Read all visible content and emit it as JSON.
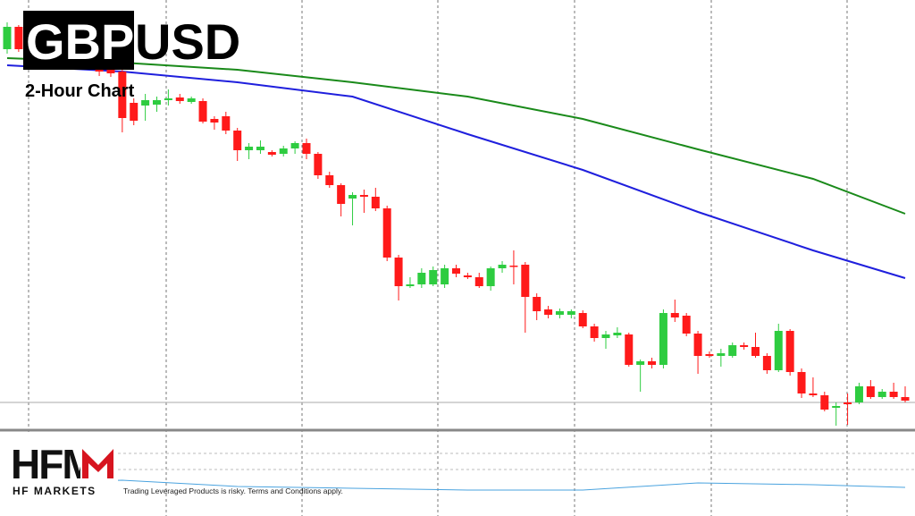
{
  "chart_data": {
    "type": "candlestick",
    "title_box": "GBP",
    "title_rest": "USD",
    "subtitle": "2-Hour Chart",
    "logo": "HFM",
    "brand": "HF MARKETS",
    "disclaimer": "Trading Leveraged Products is risky. Terms and Conditions apply.",
    "ylim": [
      0,
      480
    ],
    "up_color": "#2ecc40",
    "down_color": "#ff1a1a",
    "open": [
      425,
      450,
      414,
      422,
      420,
      410,
      418,
      416,
      410,
      405,
      400,
      365,
      362,
      363,
      368,
      371,
      366,
      367,
      347,
      350,
      334,
      312,
      312,
      310,
      308,
      314,
      320,
      308,
      284,
      273,
      258,
      262,
      260,
      247,
      192,
      160,
      162,
      162,
      162,
      180,
      172,
      170,
      160,
      180,
      183,
      184,
      148,
      134,
      128,
      128,
      130,
      115,
      102,
      105,
      106,
      72,
      76,
      72,
      130,
      127,
      107,
      84,
      82,
      82,
      94,
      92,
      82,
      66,
      110,
      64,
      40,
      38,
      24,
      30,
      30,
      48,
      36,
      42,
      36
    ],
    "high": [
      455,
      452,
      425,
      425,
      425,
      422,
      422,
      420,
      415,
      408,
      405,
      370,
      375,
      372,
      380,
      375,
      372,
      370,
      350,
      355,
      337,
      320,
      323,
      312,
      317,
      322,
      325,
      310,
      288,
      275,
      265,
      268,
      270,
      250,
      195,
      170,
      180,
      182,
      184,
      184,
      175,
      175,
      182,
      188,
      200,
      187,
      152,
      138,
      135,
      134,
      133,
      118,
      110,
      114,
      108,
      78,
      80,
      134,
      145,
      130,
      110,
      87,
      90,
      97,
      97,
      108,
      85,
      118,
      112,
      68,
      58,
      42,
      30,
      40,
      52,
      55,
      45,
      52,
      48
    ],
    "low": [
      420,
      422,
      410,
      410,
      408,
      406,
      406,
      404,
      395,
      394,
      332,
      340,
      345,
      355,
      362,
      364,
      364,
      342,
      335,
      330,
      300,
      302,
      308,
      305,
      305,
      308,
      302,
      280,
      270,
      238,
      228,
      242,
      244,
      188,
      144,
      158,
      158,
      160,
      158,
      170,
      168,
      158,
      155,
      175,
      162,
      108,
      122,
      124,
      124,
      124,
      113,
      98,
      90,
      102,
      70,
      42,
      68,
      68,
      120,
      104,
      62,
      80,
      70,
      80,
      89,
      80,
      62,
      64,
      60,
      35,
      36,
      20,
      4,
      5,
      28,
      34,
      34,
      34,
      30
    ],
    "close": [
      450,
      425,
      422,
      414,
      412,
      418,
      410,
      408,
      400,
      398,
      348,
      345,
      368,
      368,
      370,
      367,
      370,
      344,
      343,
      334,
      312,
      316,
      316,
      307,
      314,
      320,
      308,
      284,
      273,
      252,
      262,
      260,
      247,
      192,
      160,
      162,
      175,
      178,
      180,
      174,
      170,
      160,
      180,
      184,
      182,
      148,
      132,
      128,
      132,
      132,
      115,
      102,
      106,
      108,
      72,
      76,
      72,
      130,
      125,
      107,
      82,
      82,
      85,
      94,
      92,
      82,
      66,
      110,
      64,
      40,
      38,
      22,
      26,
      28,
      48,
      36,
      42,
      36,
      32
    ],
    "price_line": 30,
    "lines": [
      {
        "color": "#1a8a1a",
        "x": [
          0,
          10,
          20,
          30,
          40,
          50,
          60,
          70,
          78
        ],
        "values": [
          415,
          410,
          402,
          388,
          372,
          347,
          313,
          280,
          241
        ]
      },
      {
        "color": "#1f1fdd",
        "x": [
          0,
          10,
          20,
          30,
          40,
          50,
          60,
          70,
          78
        ],
        "values": [
          407,
          400,
          388,
          372,
          330,
          290,
          243,
          200,
          169
        ]
      }
    ],
    "indicator": {
      "color": "#4aa3df",
      "ylim": [
        0,
        95
      ],
      "x": [
        0,
        10,
        20,
        30,
        40,
        50,
        60,
        70,
        78
      ],
      "values": [
        37,
        40,
        33,
        31,
        29,
        29,
        37,
        35,
        32
      ]
    }
  }
}
